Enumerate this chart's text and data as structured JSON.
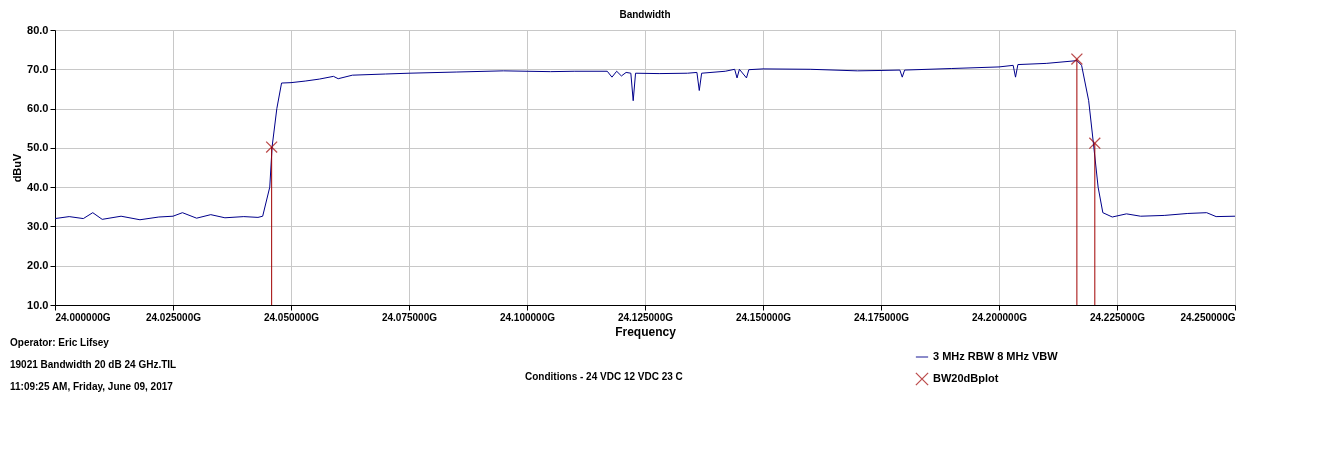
{
  "chart_data": {
    "type": "line",
    "title": "Bandwidth",
    "xlabel": "Frequency",
    "ylabel": "dBuV",
    "xlim": [
      24.0,
      24.25
    ],
    "xticks": [
      {
        "value": 24.0,
        "label": "24.000000G"
      },
      {
        "value": 24.025,
        "label": "24.025000G"
      },
      {
        "value": 24.05,
        "label": "24.050000G"
      },
      {
        "value": 24.075,
        "label": "24.075000G"
      },
      {
        "value": 24.1,
        "label": "24.100000G"
      },
      {
        "value": 24.125,
        "label": "24.125000G"
      },
      {
        "value": 24.15,
        "label": "24.150000G"
      },
      {
        "value": 24.175,
        "label": "24.175000G"
      },
      {
        "value": 24.2,
        "label": "24.200000G"
      },
      {
        "value": 24.225,
        "label": "24.225000G"
      },
      {
        "value": 24.25,
        "label": "24.250000G"
      }
    ],
    "ylim": [
      10,
      80
    ],
    "yticks": [
      {
        "value": 10,
        "label": "10.0"
      },
      {
        "value": 20,
        "label": "20.0"
      },
      {
        "value": 30,
        "label": "30.0"
      },
      {
        "value": 40,
        "label": "40.0"
      },
      {
        "value": 50,
        "label": "50.0"
      },
      {
        "value": 60,
        "label": "60.0"
      },
      {
        "value": 70,
        "label": "70.0"
      },
      {
        "value": 80,
        "label": "80.0"
      }
    ],
    "grid": true,
    "legend": "bottom right",
    "series": [
      {
        "name": "3 MHz RBW 8 MHz VBW",
        "color": "#00008b",
        "type": "line",
        "marker": "none",
        "x": [
          24.0,
          24.003,
          24.006,
          24.008,
          24.01,
          24.014,
          24.018,
          24.022,
          24.025,
          24.027,
          24.03,
          24.033,
          24.036,
          24.04,
          24.043,
          24.044,
          24.0455,
          24.046,
          24.047,
          24.048,
          24.05,
          24.053,
          24.056,
          24.059,
          24.06,
          24.063,
          24.07,
          24.075,
          24.085,
          24.095,
          24.1,
          24.105,
          24.11,
          24.117,
          24.118,
          24.119,
          24.12,
          24.121,
          24.122,
          24.1225,
          24.123,
          24.128,
          24.134,
          24.136,
          24.1365,
          24.137,
          24.142,
          24.144,
          24.1445,
          24.145,
          24.1465,
          24.147,
          24.15,
          24.16,
          24.17,
          24.175,
          24.179,
          24.1795,
          24.18,
          24.19,
          24.2,
          24.203,
          24.2035,
          24.204,
          24.21,
          24.2165,
          24.2175,
          24.219,
          24.22,
          24.221,
          24.222,
          24.224,
          24.227,
          24.23,
          24.235,
          24.24,
          24.244,
          24.246,
          24.25
        ],
        "values": [
          32,
          32.5,
          32,
          33.5,
          31.8,
          32.6,
          31.7,
          32.4,
          32.6,
          33.5,
          32.1,
          33,
          32.2,
          32.5,
          32.3,
          32.6,
          40,
          50.3,
          60,
          66.5,
          66.6,
          67,
          67.5,
          68.2,
          67.6,
          68.5,
          68.8,
          69,
          69.3,
          69.6,
          69.5,
          69.4,
          69.5,
          69.5,
          68,
          69.5,
          68.3,
          69.2,
          69,
          62,
          69,
          68.9,
          69,
          69.2,
          64.6,
          69,
          69.5,
          70,
          67.8,
          70,
          67.8,
          69.9,
          70.1,
          70,
          69.6,
          69.7,
          69.8,
          68,
          69.8,
          70.2,
          70.6,
          71,
          68,
          71.2,
          71.5,
          72.2,
          71,
          62,
          51.2,
          40,
          33.5,
          32.4,
          33.2,
          32.6,
          32.8,
          33.3,
          33.5,
          32.5,
          32.6
        ]
      },
      {
        "name": "BW20dBplot",
        "color": "#a00000",
        "type": "scatter",
        "marker": "cross",
        "x": [
          24.0459,
          24.2165,
          24.2203
        ],
        "values": [
          50.2,
          72.6,
          51.2
        ],
        "errors": [
          [
            10,
            50.2
          ],
          [
            10,
            72.6
          ],
          [
            10,
            51.2
          ]
        ]
      }
    ],
    "annotations": [
      "Operator: Eric Lifsey",
      "19021 Bandwidth 20 dB 24 GHz.TIL",
      "11:09:25 AM, Friday, June 09, 2017",
      "Conditions - 24 VDC 12 VDC 23 C"
    ]
  }
}
